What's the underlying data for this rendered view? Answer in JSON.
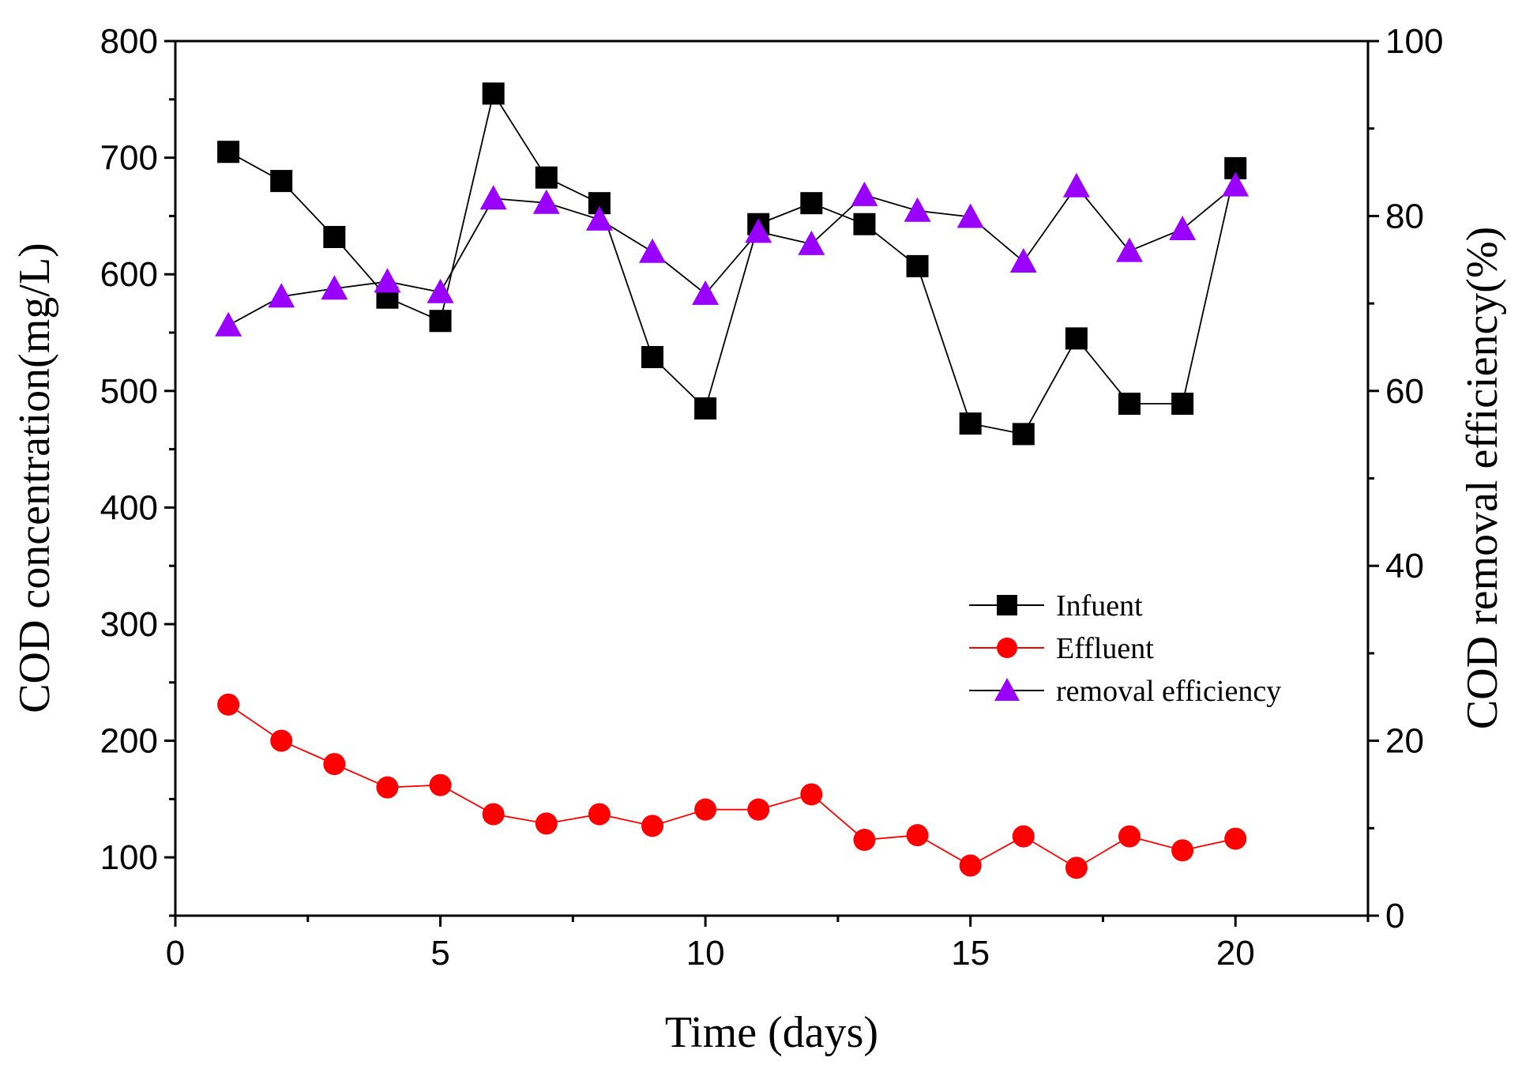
{
  "chart_data": {
    "type": "line",
    "title": "",
    "xlabel": "Time (days)",
    "ylabel": "COD concentration(mg/L)",
    "y2label": "COD removal efficiency(%)",
    "xlim": [
      0,
      22.5
    ],
    "ylim": [
      50,
      800
    ],
    "y2lim": [
      0,
      100
    ],
    "xticks": [
      0,
      5,
      10,
      15,
      20
    ],
    "yticks": [
      100,
      200,
      300,
      400,
      500,
      600,
      700,
      800
    ],
    "y2ticks": [
      0,
      20,
      40,
      60,
      80,
      100
    ],
    "grid": false,
    "legend_position": "center-right",
    "x": [
      1,
      2,
      3,
      4,
      5,
      6,
      7,
      8,
      9,
      10,
      11,
      12,
      13,
      14,
      15,
      16,
      17,
      18,
      19,
      20
    ],
    "series": [
      {
        "name": "Infuent",
        "axis": "left",
        "marker": "square",
        "color": "#000000",
        "line_color": "#000000",
        "values": [
          705,
          680,
          632,
          580,
          560,
          755,
          683,
          661,
          529,
          485,
          643,
          661,
          643,
          607,
          472,
          463,
          545,
          489,
          489,
          691
        ]
      },
      {
        "name": "Effluent",
        "axis": "left",
        "marker": "circle",
        "color": "#ff0000",
        "line_color": "#ff0000",
        "values": [
          231,
          200,
          180,
          160,
          162,
          137,
          129,
          137,
          127,
          141,
          141,
          154,
          115,
          119,
          93,
          118,
          91,
          118,
          106,
          116
        ]
      },
      {
        "name": "removal efficiency",
        "axis": "right",
        "marker": "triangle",
        "color": "#9900ff",
        "line_color": "#000000",
        "values": [
          67.5,
          70.8,
          71.7,
          72.5,
          71.3,
          82.0,
          81.5,
          79.6,
          75.9,
          71.1,
          78.2,
          76.8,
          82.4,
          80.6,
          79.9,
          74.8,
          83.4,
          76.0,
          78.5,
          83.5
        ]
      }
    ]
  }
}
